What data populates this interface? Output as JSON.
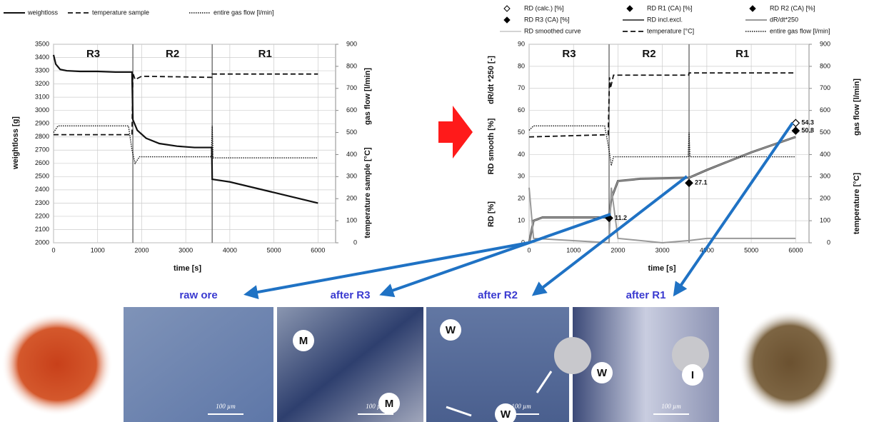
{
  "chart_data": [
    {
      "type": "line",
      "xlabel": "time [s]",
      "ylabel": "weightloss [g]",
      "y2label": [
        "gas flow [l/min]",
        "temperature sample [°C]"
      ],
      "xlim": [
        0,
        6400
      ],
      "xticks": [
        0,
        1000,
        2000,
        3000,
        4000,
        5000,
        6000
      ],
      "ylim": [
        2000,
        3500
      ],
      "yticks": [
        2000,
        2100,
        2200,
        2300,
        2400,
        2500,
        2600,
        2700,
        2800,
        2900,
        3000,
        3100,
        3200,
        3300,
        3400,
        3500
      ],
      "y2lim": [
        0,
        900
      ],
      "y2ticks": [
        0,
        100,
        200,
        300,
        400,
        500,
        600,
        700,
        800,
        900
      ],
      "grid": true,
      "dividers": [
        1800,
        3600
      ],
      "region_labels": [
        "R3",
        "R2",
        "R1"
      ],
      "series": [
        {
          "name": "weightloss",
          "color": "#111111",
          "style": "solid",
          "width": 2.2,
          "x": [
            0,
            50,
            150,
            300,
            600,
            1000,
            1400,
            1780,
            1800,
            1900,
            2100,
            2400,
            2800,
            3200,
            3590,
            3600,
            4000,
            5000,
            6000
          ],
          "values": [
            3420,
            3350,
            3310,
            3300,
            3295,
            3295,
            3290,
            3290,
            2930,
            2850,
            2790,
            2750,
            2730,
            2720,
            2720,
            2480,
            2460,
            2380,
            2300
          ]
        },
        {
          "name": "temperature sample",
          "color": "#111111",
          "style": "dashed",
          "width": 1.8,
          "axis": "y2",
          "x": [
            0,
            1780,
            1800,
            1850,
            2000,
            3590,
            3600,
            6000
          ],
          "values": [
            490,
            490,
            770,
            740,
            755,
            750,
            765,
            765
          ]
        },
        {
          "name": "entire gas flow [l/min]",
          "color": "#111111",
          "style": "dotted",
          "width": 1.4,
          "axis": "y2",
          "x": [
            0,
            100,
            1700,
            1780,
            1850,
            1950,
            3580,
            3600,
            3620,
            6000
          ],
          "values": [
            500,
            530,
            530,
            420,
            360,
            390,
            390,
            530,
            385,
            385
          ]
        }
      ]
    },
    {
      "type": "line",
      "xlabel": "time [s]",
      "ylabel": [
        "RD [%]",
        "RD smooth [%]",
        "dR/dt *250 [-]"
      ],
      "y2label": [
        "gas flow [l/min]",
        "temperature [°C]"
      ],
      "xlim": [
        0,
        6300
      ],
      "xticks": [
        0,
        1000,
        2000,
        3000,
        4000,
        5000,
        6000
      ],
      "ylim": [
        0,
        90
      ],
      "yticks": [
        0,
        10,
        20,
        30,
        40,
        50,
        60,
        70,
        80,
        90
      ],
      "y2lim": [
        0,
        900
      ],
      "y2ticks": [
        0,
        100,
        200,
        300,
        400,
        500,
        600,
        700,
        800,
        900
      ],
      "grid": true,
      "dividers": [
        1800,
        3600
      ],
      "region_labels": [
        "R3",
        "R2",
        "R1"
      ],
      "series": [
        {
          "name": "RD (calc.) [%]",
          "color": "#000000",
          "marker": "diamond-open",
          "x": [
            6000
          ],
          "values": [
            54.3
          ]
        },
        {
          "name": "RD R1 (CA) [%]",
          "color": "#000000",
          "marker": "diamond",
          "x": [
            6000
          ],
          "values": [
            50.8
          ]
        },
        {
          "name": "RD R2 (CA) [%]",
          "color": "#000000",
          "marker": "diamond",
          "x": [
            3600
          ],
          "values": [
            27.1
          ]
        },
        {
          "name": "RD R3 (CA) [%]",
          "color": "#000000",
          "marker": "diamond",
          "x": [
            1800
          ],
          "values": [
            11.2
          ]
        },
        {
          "name": "RD incl.excl.",
          "color": "#555555",
          "style": "solid",
          "width": 3,
          "x": [
            0,
            100,
            300,
            1800,
            1850,
            2000,
            2500,
            3600,
            4000,
            5000,
            6000
          ],
          "values": [
            0,
            10,
            11.5,
            11.5,
            20,
            28,
            29,
            29.5,
            33,
            41,
            48
          ]
        },
        {
          "name": "dR/dt*250",
          "color": "#999999",
          "style": "solid",
          "width": 2,
          "x": [
            0,
            100,
            1800,
            1850,
            2000,
            3000,
            3600,
            4000,
            6000
          ],
          "values": [
            25,
            2,
            0,
            25,
            2,
            0,
            1,
            2,
            2
          ]
        },
        {
          "name": "RD smoothed curve",
          "color": "#aaaaaa",
          "style": "solid",
          "width": 1,
          "x": [
            0,
            100,
            300,
            1800,
            1850,
            2000,
            2500,
            3600,
            4000,
            5000,
            6000
          ],
          "values": [
            0,
            10,
            11.5,
            11.5,
            20,
            28,
            29,
            29.5,
            33,
            41,
            48
          ]
        },
        {
          "name": "temperature [°C]",
          "color": "#111111",
          "style": "dashed",
          "width": 1.8,
          "axis": "y2",
          "x": [
            0,
            1780,
            1810,
            1830,
            1900,
            3590,
            3600,
            6000
          ],
          "values": [
            480,
            490,
            750,
            700,
            760,
            760,
            770,
            770
          ]
        },
        {
          "name": "entire gas flow [l/min]",
          "color": "#111111",
          "style": "dotted",
          "width": 1.4,
          "axis": "y2",
          "x": [
            0,
            100,
            1700,
            1800,
            1850,
            1900,
            3580,
            3600,
            3620,
            6000
          ],
          "values": [
            510,
            530,
            530,
            420,
            350,
            390,
            390,
            500,
            390,
            390
          ]
        }
      ]
    }
  ],
  "panels": [
    {
      "title": "raw ore",
      "scale": "100 µm",
      "markers": []
    },
    {
      "title": "after R3",
      "scale": "100 µm",
      "markers": [
        "M",
        "M"
      ]
    },
    {
      "title": "after R2",
      "scale": "100 µm",
      "markers": [
        "W",
        "W"
      ]
    },
    {
      "title": "after R1",
      "scale": "100 µm",
      "markers": [
        "W",
        "I"
      ]
    }
  ]
}
